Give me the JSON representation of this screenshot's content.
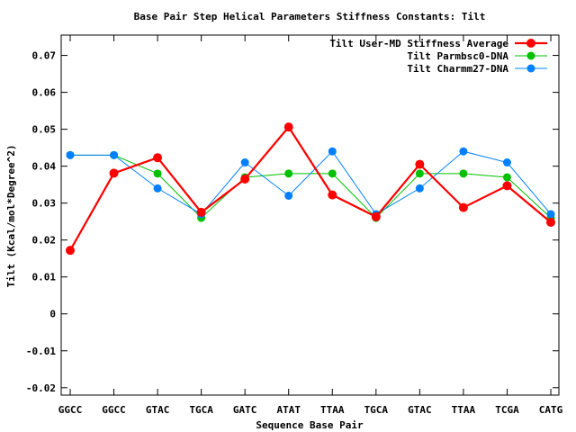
{
  "chart_data": {
    "type": "line",
    "title": "Base Pair Step Helical Parameters Stiffness Constants: Tilt",
    "xlabel": "Sequence Base Pair",
    "ylabel": "Tilt (Kcal/mol*Degree^2)",
    "categories": [
      "GGCC",
      "GGCC",
      "GTAC",
      "TGCA",
      "GATC",
      "ATAT",
      "TTAA",
      "TGCA",
      "GTAC",
      "TTAA",
      "TCGA",
      "CATG"
    ],
    "ylim": [
      -0.022,
      0.0755
    ],
    "yticks": [
      -0.02,
      -0.01,
      0,
      0.01,
      0.02,
      0.03,
      0.04,
      0.05,
      0.06,
      0.07
    ],
    "ytick_labels": [
      "-0.02",
      "-0.01",
      "0",
      "0.01",
      "0.02",
      "0.03",
      "0.04",
      "0.05",
      "0.06",
      "0.07"
    ],
    "grid": false,
    "legend_position": "top-right",
    "series": [
      {
        "name": "Tilt User-MD Stiffness Average",
        "color": "#ff0000",
        "values": [
          0.0172,
          0.0381,
          0.0423,
          0.0275,
          0.0365,
          0.0506,
          0.0322,
          0.0263,
          0.0405,
          0.0288,
          0.0347,
          0.0248
        ]
      },
      {
        "name": "Tilt Parmbsc0-DNA",
        "color": "#00c000",
        "values": [
          0.043,
          0.043,
          0.038,
          0.026,
          0.037,
          0.038,
          0.038,
          0.026,
          0.038,
          0.038,
          0.037,
          0.026
        ]
      },
      {
        "name": "Tilt Charmm27-DNA",
        "color": "#0080ff",
        "values": [
          0.043,
          0.043,
          0.034,
          0.027,
          0.041,
          0.032,
          0.044,
          0.027,
          0.034,
          0.044,
          0.041,
          0.027
        ]
      }
    ]
  }
}
